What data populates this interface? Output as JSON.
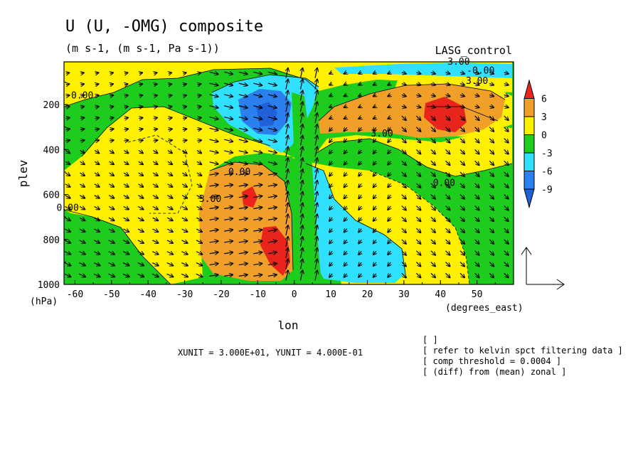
{
  "chart_data": {
    "type": "contour",
    "title": "U (U, -OMG) composite",
    "subtitle": "(m s-1, (m s-1, Pa s-1))",
    "dataset": "LASG_control",
    "xlabel": "lon",
    "xunit": "(degrees_east)",
    "ylabel": "plev",
    "yunit": "(hPa)",
    "xlim": [
      -63,
      60
    ],
    "ylim": [
      1000,
      10
    ],
    "x_ticks": [
      -60,
      -50,
      -40,
      -30,
      -20,
      -10,
      0,
      10,
      20,
      30,
      40,
      50
    ],
    "x_tick_labels": [
      "-60",
      "-50",
      "-40",
      "-30",
      "-20",
      "-10",
      "0",
      "10",
      "20",
      "30",
      "40",
      "50"
    ],
    "y_ticks": [
      200,
      400,
      600,
      800,
      1000
    ],
    "y_tick_labels": [
      "200",
      "400",
      "600",
      "800",
      "1000"
    ],
    "colorbar": {
      "levels": [
        6,
        3,
        0,
        -3,
        -6,
        -9
      ],
      "labels": [
        "6",
        "3",
        "0",
        "-3",
        "-6",
        "-9"
      ],
      "colors": [
        "#e8241c",
        "#f0a028",
        "#fff000",
        "#1ecc1e",
        "#30e0ff",
        "#2a80ee",
        "#2060d8"
      ]
    },
    "contour_labels": [
      {
        "text": "3.00",
        "x": 45,
        "y": 10
      },
      {
        "text": "-0.00",
        "x": 51,
        "y": 50
      },
      {
        "text": "3.00",
        "x": 50,
        "y": 95
      },
      {
        "text": "0.00",
        "x": -58,
        "y": 160
      },
      {
        "text": "3.00",
        "x": 24,
        "y": 330
      },
      {
        "text": "0.00",
        "x": -15,
        "y": 500
      },
      {
        "text": "0.00",
        "x": 41,
        "y": 550
      },
      {
        "text": "3.00",
        "x": -23,
        "y": 620
      },
      {
        "text": "0.00",
        "x": -62,
        "y": 660
      }
    ],
    "vector_scale": {
      "xunit_text": "XUNIT = 3.000E+01, YUNIT = 4.000E-01"
    },
    "notes": [
      "[  ]",
      "[ refer to kelvin spct filtering data ]",
      "[ comp threshold = 0.0004 ]",
      "[ (diff) from (mean) zonal ]"
    ]
  }
}
